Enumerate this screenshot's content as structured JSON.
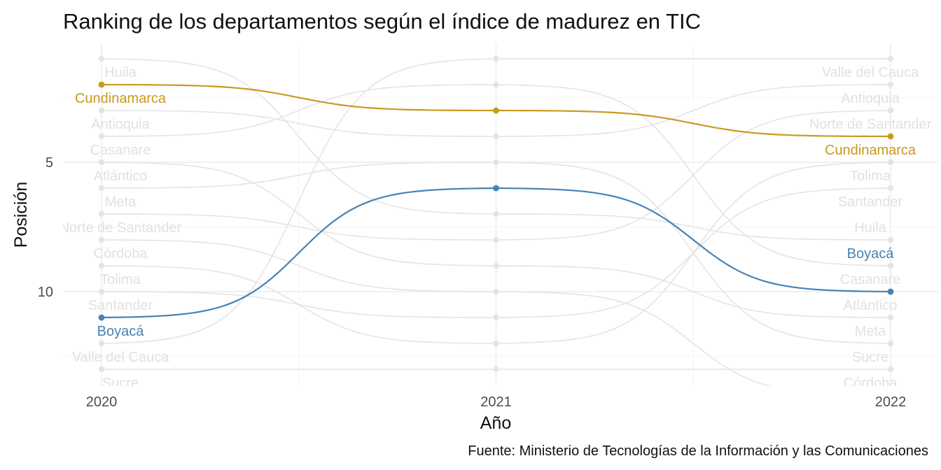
{
  "title": "Ranking de los departamentos según el índice de madurez en TIC",
  "caption": "Fuente: Ministerio de Tecnologías de la Información y las Comunicaciones",
  "colors": {
    "cundinamarca": "#C99A1E",
    "boyaca": "#4682B4",
    "background_series": "#E4E4E4"
  },
  "chart_data": {
    "type": "line",
    "subtype": "bump",
    "title": "Ranking de los departamentos según el índice de madurez en TIC",
    "xlabel": "Año",
    "ylabel": "Posición",
    "x": [
      2020,
      2021,
      2022
    ],
    "x_ticks": [
      "2020",
      "2021",
      "2022"
    ],
    "y_ticks": [
      5,
      10
    ],
    "y_tick_labels": [
      "5",
      "10"
    ],
    "ylim": [
      0.6,
      13.8
    ],
    "y_reversed": true,
    "highlight": [
      "Cundinamarca",
      "Boyacá"
    ],
    "series": [
      {
        "name": "Cundinamarca",
        "values": [
          2,
          3,
          4
        ],
        "highlight": true
      },
      {
        "name": "Boyacá",
        "values": [
          11,
          6,
          10
        ],
        "highlight": true
      },
      {
        "name": "Huila",
        "values": [
          1,
          7,
          8
        ],
        "highlight": false
      },
      {
        "name": "Antioquia",
        "values": [
          3,
          4,
          2
        ],
        "highlight": false
      },
      {
        "name": "Casanare",
        "values": [
          4,
          2,
          9
        ],
        "highlight": false
      },
      {
        "name": "Atlántico",
        "values": [
          5,
          9,
          11
        ],
        "highlight": false
      },
      {
        "name": "Meta",
        "values": [
          6,
          5,
          12
        ],
        "highlight": false
      },
      {
        "name": "Norte de Santander",
        "values": [
          7,
          8,
          3
        ],
        "highlight": false
      },
      {
        "name": "Córdoba",
        "values": [
          8,
          10,
          14
        ],
        "highlight": false
      },
      {
        "name": "Tolima",
        "values": [
          9,
          12,
          5
        ],
        "highlight": false
      },
      {
        "name": "Santander",
        "values": [
          10,
          11,
          6
        ],
        "highlight": false
      },
      {
        "name": "Valle del Cauca",
        "values": [
          12,
          1,
          1
        ],
        "highlight": false
      },
      {
        "name": "Sucre",
        "values": [
          13,
          13,
          13
        ],
        "highlight": false
      }
    ],
    "left_labels": [
      "Huila",
      "Cundinamarca",
      "Antioquia",
      "Casanare",
      "Atlántico",
      "Meta",
      "Norte de Santander",
      "Córdoba",
      "Tolima",
      "Santander",
      "Boyacá",
      "Valle del Cauca",
      "Sucre"
    ],
    "right_labels": [
      "Valle del Cauca",
      "Antioquia",
      "Norte de Santander",
      "Cundinamarca",
      "Tolima",
      "Santander",
      "Huila",
      "Boyacá",
      "Casanare",
      "Atlántico",
      "Meta",
      "Sucre",
      "Córdoba"
    ]
  }
}
